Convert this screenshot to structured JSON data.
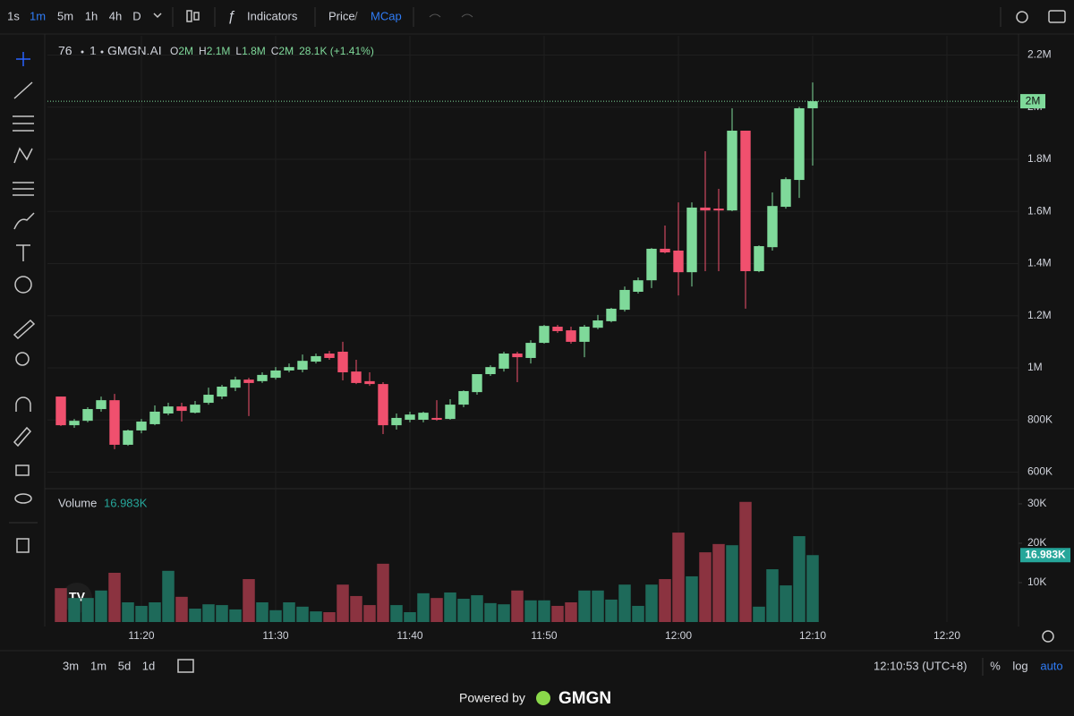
{
  "toolbar": {
    "intervals": [
      "1s",
      "1m",
      "5m",
      "1h",
      "4h",
      "D"
    ],
    "selected_interval": 1,
    "indicators": "Indicators",
    "price": "Price",
    "separator": "/",
    "mcap": "MCap"
  },
  "chart_data": [
    {
      "type": "candlestick",
      "legend": {
        "symbol": "76",
        "interval": "1",
        "source": "GMGN.AI",
        "ohlc": [
          {
            "label": "O",
            "value": "2M"
          },
          {
            "label": "H",
            "value": "2.1M"
          },
          {
            "label": "L",
            "value": "1.8M"
          },
          {
            "label": "C",
            "value": "2M"
          }
        ],
        "change": "28.1K (+1.41%)"
      },
      "up_color": "#7fd99a",
      "down_color": "#f0506e",
      "x": [
        "11:14",
        "11:15",
        "11:16",
        "11:17",
        "11:18",
        "11:19",
        "11:20",
        "11:21",
        "11:22",
        "11:23",
        "11:24",
        "11:25",
        "11:26",
        "11:27",
        "11:28",
        "11:29",
        "11:30",
        "11:31",
        "11:32",
        "11:33",
        "11:34",
        "11:35",
        "11:36",
        "11:37",
        "11:38",
        "11:39",
        "11:40",
        "11:41",
        "11:42",
        "11:43",
        "11:44",
        "11:45",
        "11:46",
        "11:47",
        "11:48",
        "11:49",
        "11:50",
        "11:51",
        "11:52",
        "11:53",
        "11:54",
        "11:55",
        "11:56",
        "11:57",
        "11:58",
        "11:59",
        "12:00",
        "12:01",
        "12:02",
        "12:03",
        "12:04",
        "12:05",
        "12:06",
        "12:07",
        "12:08",
        "12:09",
        "12:10"
      ],
      "open": [
        890000,
        780000,
        797000,
        842000,
        876000,
        705000,
        760000,
        784000,
        825000,
        852000,
        828000,
        866000,
        890000,
        924000,
        955000,
        949000,
        962000,
        990000,
        993000,
        1024000,
        1055000,
        1062000,
        986000,
        949000,
        938000,
        780000,
        801000,
        801000,
        808000,
        804000,
        859000,
        907000,
        976000,
        997000,
        1055000,
        1038000,
        1096000,
        1158000,
        1144000,
        1100000,
        1154000,
        1179000,
        1223000,
        1292000,
        1336000,
        1457000,
        1450000,
        1367000,
        1615000,
        1611000,
        1604000,
        1910000,
        1371000,
        1463000,
        1618000,
        1721000,
        1996000
      ],
      "high": [
        890000,
        804000,
        849000,
        890000,
        900000,
        763000,
        804000,
        856000,
        866000,
        866000,
        873000,
        924000,
        935000,
        966000,
        962000,
        983000,
        1003000,
        1017000,
        1051000,
        1055000,
        1065000,
        1100000,
        1031000,
        983000,
        945000,
        825000,
        832000,
        832000,
        876000,
        880000,
        914000,
        976000,
        1010000,
        1062000,
        1062000,
        1106000,
        1165000,
        1165000,
        1158000,
        1165000,
        1203000,
        1230000,
        1312000,
        1347000,
        1460000,
        1546000,
        1635000,
        1635000,
        1831000,
        1687000,
        1996000,
        1910000,
        1470000,
        1673000,
        1731000,
        2002000,
        2095000
      ],
      "low": [
        777000,
        770000,
        791000,
        832000,
        688000,
        701000,
        749000,
        780000,
        818000,
        794000,
        825000,
        859000,
        880000,
        911000,
        815000,
        942000,
        955000,
        983000,
        983000,
        1017000,
        1031000,
        952000,
        938000,
        931000,
        746000,
        763000,
        791000,
        791000,
        797000,
        801000,
        849000,
        897000,
        969000,
        986000,
        945000,
        1017000,
        1093000,
        1134000,
        1093000,
        1041000,
        1148000,
        1175000,
        1216000,
        1285000,
        1306000,
        1439000,
        1278000,
        1312000,
        1371000,
        1371000,
        1601000,
        1227000,
        1367000,
        1450000,
        1611000,
        1652000,
        1776000
      ],
      "close": [
        780000,
        797000,
        842000,
        876000,
        705000,
        760000,
        794000,
        832000,
        852000,
        835000,
        859000,
        897000,
        928000,
        955000,
        942000,
        973000,
        990000,
        1003000,
        1027000,
        1045000,
        1038000,
        983000,
        942000,
        938000,
        780000,
        808000,
        821000,
        828000,
        801000,
        859000,
        911000,
        976000,
        1003000,
        1055000,
        1041000,
        1096000,
        1161000,
        1141000,
        1100000,
        1158000,
        1182000,
        1227000,
        1299000,
        1336000,
        1457000,
        1443000,
        1367000,
        1615000,
        1604000,
        1604000,
        1910000,
        1371000,
        1467000,
        1621000,
        1724000,
        1996000,
        2023000
      ],
      "last_price_label": "2M",
      "xlim": [
        "11:13",
        "12:25"
      ],
      "xticks": [
        "11:20",
        "11:30",
        "11:40",
        "11:50",
        "12:00",
        "12:10",
        "12:20"
      ],
      "ylim": [
        540000,
        2274000
      ],
      "yticks": [
        {
          "value": 600000,
          "label": "600K"
        },
        {
          "value": 800000,
          "label": "800K"
        },
        {
          "value": 1000000,
          "label": "1M"
        },
        {
          "value": 1200000,
          "label": "1.2M"
        },
        {
          "value": 1400000,
          "label": "1.4M"
        },
        {
          "value": 1600000,
          "label": "1.6M"
        },
        {
          "value": 1800000,
          "label": "1.8M"
        },
        {
          "value": 2000000,
          "label": "2M"
        },
        {
          "value": 2200000,
          "label": "2.2M"
        }
      ],
      "grid": true
    },
    {
      "type": "bar",
      "title": "Volume",
      "last_value_label": "16.983K",
      "up_color": "#1e6a5a",
      "down_color": "#8b3340",
      "label_color": "#26a69a",
      "values": [
        8600,
        6100,
        6100,
        8000,
        12500,
        5000,
        4100,
        5000,
        13000,
        6400,
        3400,
        4500,
        4300,
        3200,
        10900,
        5000,
        3000,
        5000,
        3900,
        2700,
        2500,
        9500,
        6600,
        4300,
        14800,
        4300,
        2500,
        7300,
        6100,
        7500,
        5900,
        6800,
        4800,
        4500,
        8000,
        5500,
        5500,
        4100,
        5000,
        8000,
        8000,
        5700,
        9500,
        4100,
        9500,
        10900,
        22700,
        11600,
        17700,
        19800,
        19500,
        30500,
        3900,
        13400,
        9300,
        21800,
        16983
      ],
      "ylim": [
        0,
        33400
      ],
      "yticks": [
        {
          "value": 10000,
          "label": "10K"
        },
        {
          "value": 20000,
          "label": "20K"
        },
        {
          "value": 30000,
          "label": "30K"
        }
      ]
    }
  ],
  "bottom_bar": {
    "ranges": [
      "3m",
      "1m",
      "5d",
      "1d"
    ],
    "clock": "12:10:53 (UTC+8)",
    "options": [
      "%",
      "log",
      "auto"
    ],
    "selected_option": 2
  },
  "footer": {
    "powered_by": "Powered by",
    "brand": "GMGN"
  }
}
